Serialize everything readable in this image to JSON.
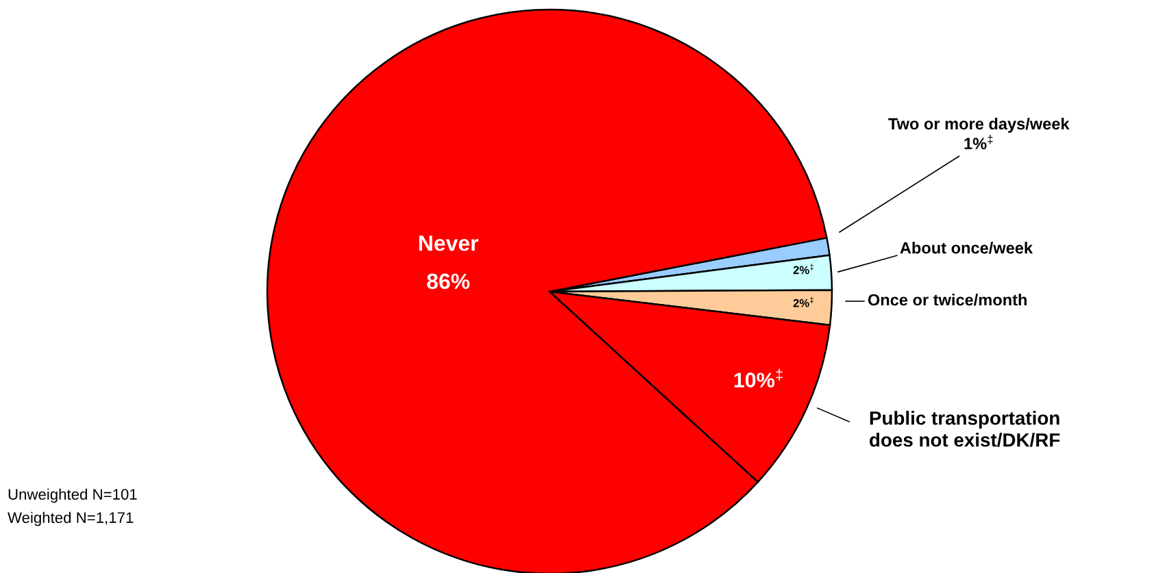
{
  "chart_data": {
    "type": "pie",
    "categories": [
      "Two or more days/week",
      "About once/week",
      "Once or twice/month",
      "Public transportation\ndoes not exist/DK/RF",
      "Never"
    ],
    "values": [
      1,
      2,
      2,
      10,
      86
    ],
    "colors": [
      "#99ccff",
      "#ccffff",
      "#ffcc99",
      "#ff0000",
      "#ff0000"
    ],
    "value_labels": [
      "1%$^{‡}$",
      "2%$^{‡}$",
      "2%$^{‡}$",
      "10%$^{‡}$",
      "86%"
    ],
    "annotations": [
      "Unweighted N=101",
      "Weighted N=1,171"
    ]
  }
}
